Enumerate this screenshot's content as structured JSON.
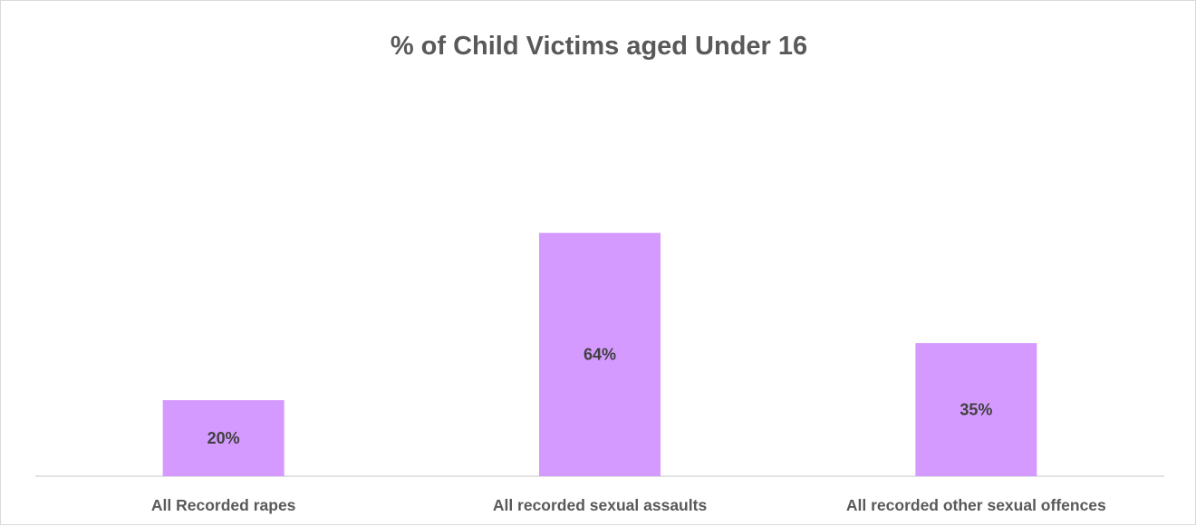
{
  "chart_data": {
    "type": "bar",
    "title": "% of Child Victims aged Under 16",
    "categories": [
      "All Recorded rapes",
      "All recorded sexual assaults",
      "All recorded other sexual offences"
    ],
    "values": [
      20,
      64,
      35
    ],
    "value_labels": [
      "20%",
      "64%",
      "35%"
    ],
    "xlabel": "",
    "ylabel": "",
    "ylim": [
      0,
      100
    ],
    "grid": false,
    "legend": "none",
    "bar_color": "#d59aff",
    "axis_color": "#d9d9d9",
    "text_color": "#595959",
    "label_color": "#404040"
  }
}
